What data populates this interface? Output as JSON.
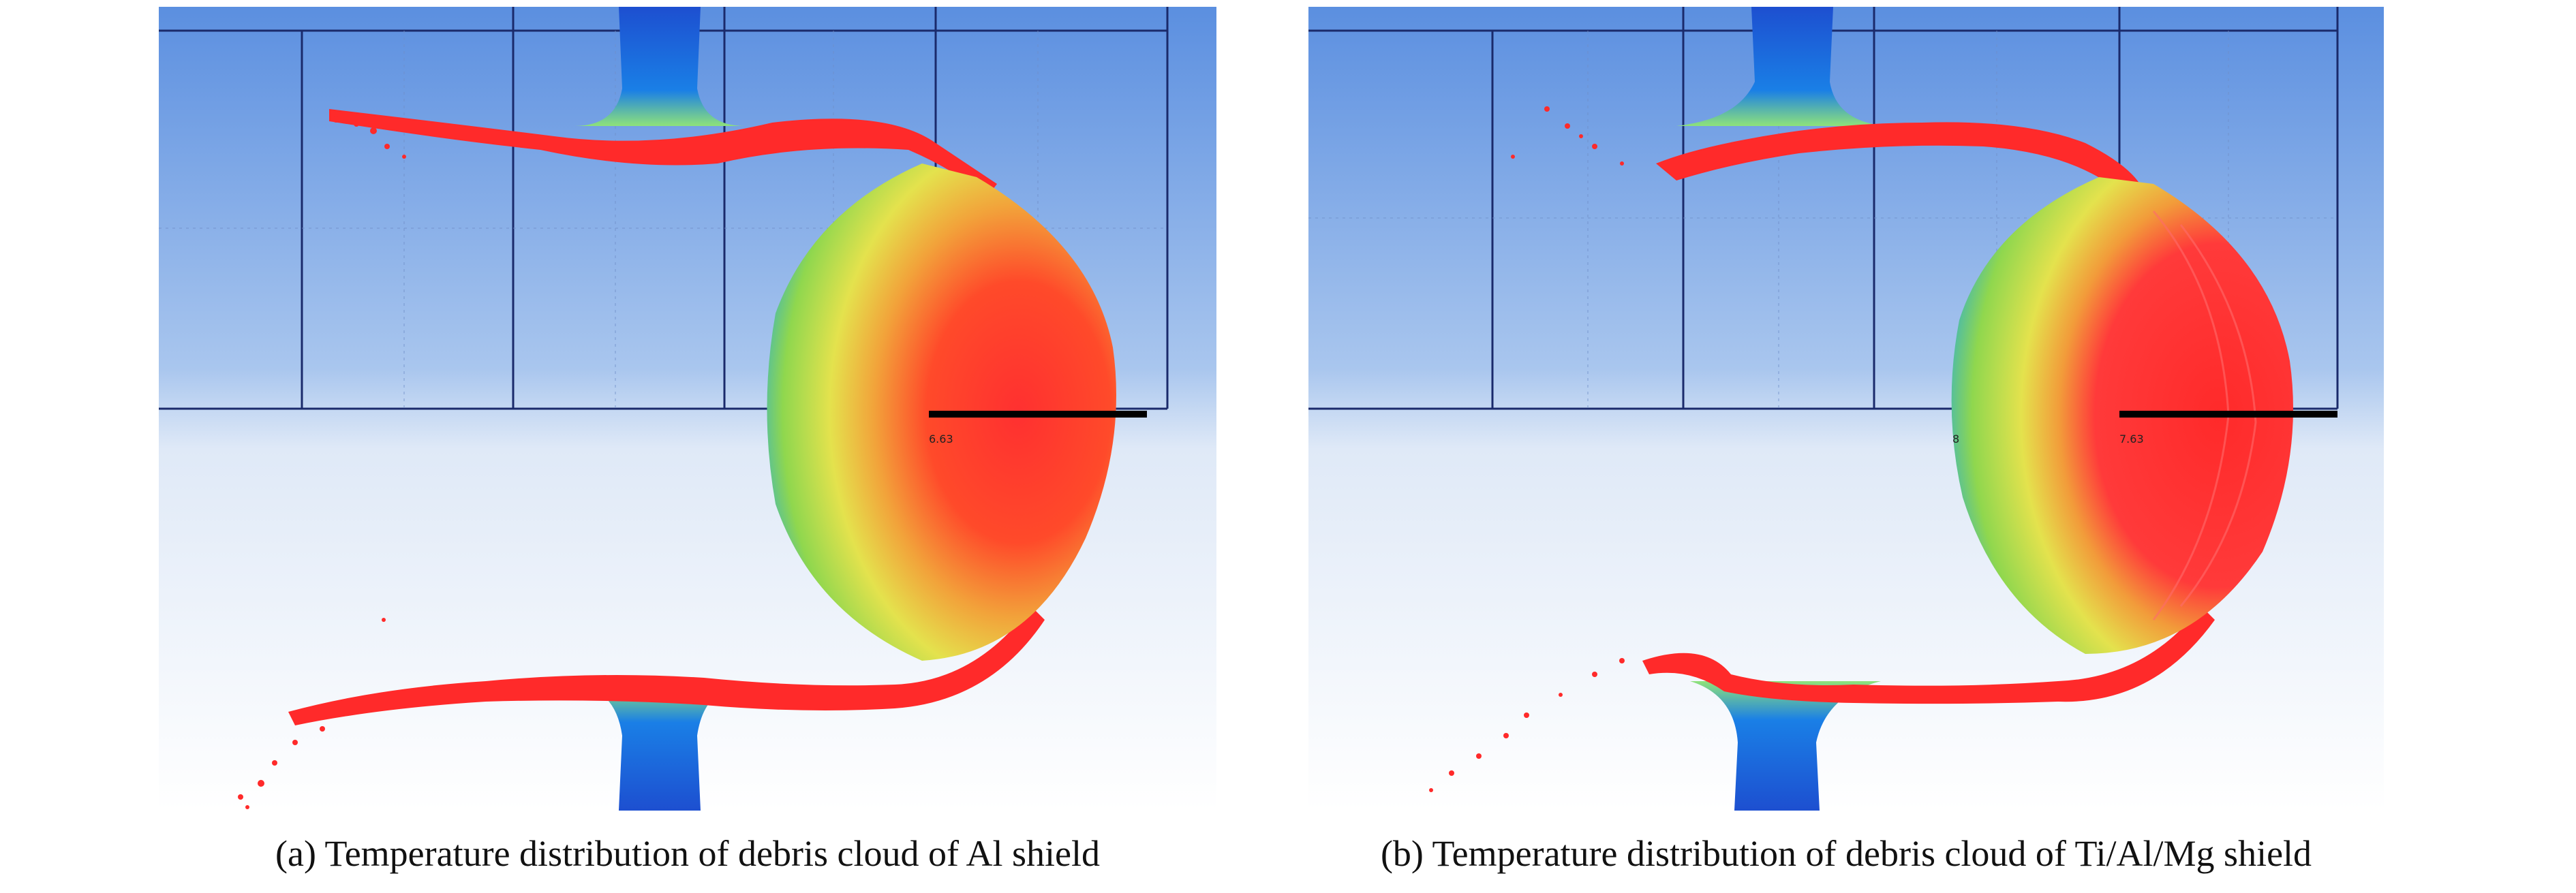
{
  "figures": [
    {
      "id": "a",
      "caption": "(a) Temperature distribution of debris cloud of Al shield",
      "scale_labels": [
        "6.63"
      ]
    },
    {
      "id": "b",
      "caption": "(b) Temperature distribution of debris cloud of Ti/Al/Mg shield",
      "scale_labels": [
        "8",
        "7.63"
      ]
    }
  ],
  "colors": {
    "background_top": "#5b8fe0",
    "background_bottom": "#ffffff",
    "grid_line": "#1a2a6b",
    "shield_blue": "#1f55d6",
    "hot_red": "#ff2a2a",
    "mid_green": "#7fd94a",
    "warm_yellow": "#e9e64a",
    "scale_bar": "#000000"
  }
}
